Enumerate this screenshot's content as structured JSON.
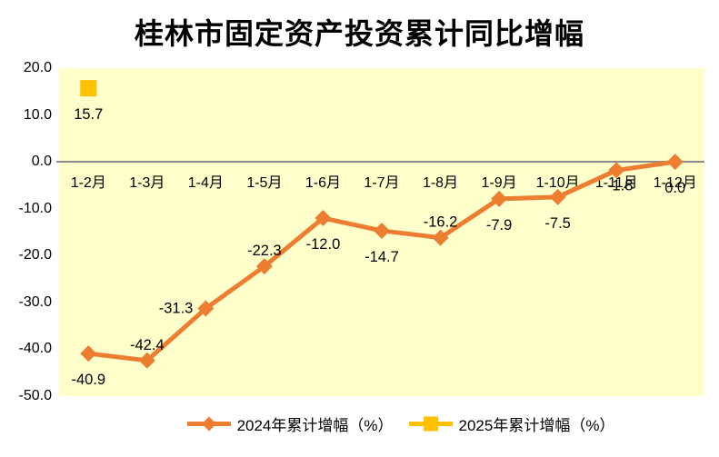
{
  "title": "桂林市固定资产投资累计同比增幅",
  "chart_data": {
    "type": "line",
    "title": "桂林市固定资产投资累计同比增幅",
    "categories": [
      "1-2月",
      "1-3月",
      "1-4月",
      "1-5月",
      "1-6月",
      "1-7月",
      "1-8月",
      "1-9月",
      "1-10月",
      "1-11月",
      "1-12月"
    ],
    "series": [
      {
        "name": "2024年累计增幅（%）",
        "color": "#ED7D31",
        "marker": "diamond",
        "values": [
          -40.9,
          -42.4,
          -31.3,
          -22.3,
          -12.0,
          -14.7,
          -16.2,
          -7.9,
          -7.5,
          -1.8,
          0.0
        ],
        "labels": [
          "-40.9",
          "-42.4",
          "-31.3",
          "-22.3",
          "-12.0",
          "-14.7",
          "-16.2",
          "-7.9",
          "-7.5",
          "-1.8",
          "0.0"
        ],
        "label_positions": [
          "below",
          "above",
          "left",
          "above",
          "below",
          "below",
          "above",
          "below",
          "below",
          "below-close",
          "below"
        ]
      },
      {
        "name": "2025年累计增幅（%）",
        "color": "#FFC000",
        "marker": "square",
        "values": [
          15.7,
          null,
          null,
          null,
          null,
          null,
          null,
          null,
          null,
          null,
          null
        ],
        "labels": [
          "15.7",
          "",
          "",
          "",
          "",
          "",
          "",
          "",
          "",
          "",
          ""
        ],
        "label_positions": [
          "below",
          "",
          "",
          "",
          "",
          "",
          "",
          "",
          "",
          "",
          ""
        ]
      }
    ],
    "ylim": [
      -50,
      20
    ],
    "yticks": [
      "20.0",
      "10.0",
      "0.0",
      "-10.0",
      "-20.0",
      "-30.0",
      "-40.0",
      "-50.0"
    ],
    "grid": false,
    "legend_position": "bottom",
    "colors": {
      "plot_bg": "#FFFFCC",
      "zero_line": "#8C8C8C",
      "text": "#000000",
      "background": "#FFFFFF"
    }
  }
}
